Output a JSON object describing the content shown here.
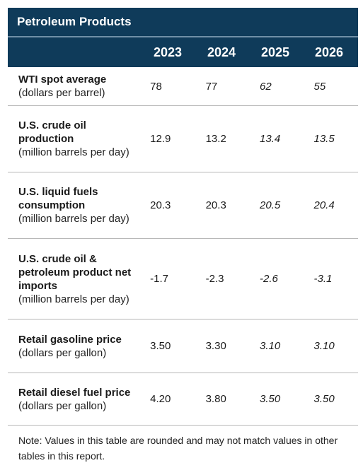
{
  "title": "Petroleum Products",
  "years": [
    "2023",
    "2024",
    "2025",
    "2026"
  ],
  "rows": [
    {
      "label": "WTI spot average",
      "unit": "(dollars per barrel)",
      "values": [
        "78",
        "77",
        "62",
        "55"
      ]
    },
    {
      "label": "U.S. crude oil production",
      "unit": "(million barrels per day)",
      "values": [
        "12.9",
        "13.2",
        "13.4",
        "13.5"
      ]
    },
    {
      "label": "U.S. liquid fuels consumption",
      "unit": "(million barrels per day)",
      "values": [
        "20.3",
        "20.3",
        "20.5",
        "20.4"
      ]
    },
    {
      "label": "U.S. crude oil & petroleum product net imports",
      "unit": "(million barrels per day)",
      "values": [
        "-1.7",
        "-2.3",
        "-2.6",
        "-3.1"
      ]
    },
    {
      "label": "Retail gasoline price",
      "unit": "(dollars per gallon)",
      "values": [
        "3.50",
        "3.30",
        "3.10",
        "3.10"
      ]
    },
    {
      "label": "Retail diesel fuel price",
      "unit": "(dollars per gallon)",
      "values": [
        "4.20",
        "3.80",
        "3.50",
        "3.50"
      ]
    }
  ],
  "note": "Note: Values in this table are rounded and may not match values in other tables in this report.",
  "colors": {
    "header_bg": "#0f3b5a",
    "header_text": "#ffffff",
    "row_border": "#b7b7b7"
  }
}
